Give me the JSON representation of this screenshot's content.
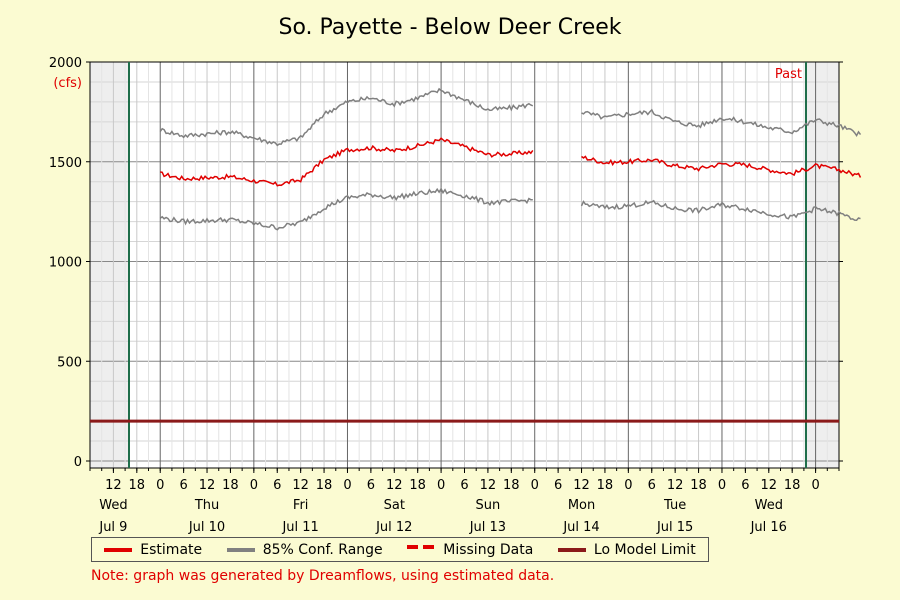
{
  "chart_data": {
    "type": "line",
    "title": "So. Payette - Below Deer Creek",
    "ylabel_unit": "(cfs)",
    "ylim": [
      0,
      2000
    ],
    "y_ticks": [
      0,
      500,
      1000,
      1500,
      2000
    ],
    "x_range_hours": [
      "2025-07-09T06:00",
      "2025-07-17T06:00"
    ],
    "x_tick_labels": [
      "12",
      "18",
      "0",
      "6",
      "12",
      "18",
      "0",
      "6",
      "12",
      "18",
      "0",
      "6",
      "12",
      "18",
      "0",
      "6",
      "12",
      "18",
      "0",
      "6",
      "12",
      "18",
      "0",
      "6",
      "12",
      "18",
      "0",
      "6",
      "12",
      "18",
      "0"
    ],
    "day_labels": [
      {
        "day": "Wed",
        "date": "Jul 9"
      },
      {
        "day": "Thu",
        "date": "Jul 10"
      },
      {
        "day": "Fri",
        "date": "Jul 11"
      },
      {
        "day": "Sat",
        "date": "Jul 12"
      },
      {
        "day": "Sun",
        "date": "Jul 13"
      },
      {
        "day": "Mon",
        "date": "Jul 14"
      },
      {
        "day": "Tue",
        "date": "Jul 15"
      },
      {
        "day": "Wed",
        "date": "Jul 16"
      }
    ],
    "past_label": "Past",
    "grid": true,
    "series": [
      {
        "name": "Estimate",
        "color": "#e00000",
        "time_hours": [
          0,
          6,
          12,
          18,
          24,
          30,
          36,
          42,
          48,
          54,
          60,
          66,
          72,
          78,
          84,
          90,
          96,
          102,
          108,
          114,
          120,
          126,
          132,
          138,
          144,
          150,
          156,
          162,
          168,
          174,
          180
        ],
        "values": [
          1440,
          1415,
          1420,
          1425,
          1405,
          1385,
          1410,
          1510,
          1560,
          1570,
          1555,
          1580,
          1610,
          1575,
          1535,
          1540,
          1550,
          null,
          1525,
          1495,
          1500,
          1510,
          1480,
          1465,
          1490,
          1485,
          1460,
          1440,
          1480,
          1460,
          1425
        ]
      },
      {
        "name": "85% Conf. Range (upper)",
        "color": "#808080",
        "time_hours": [
          0,
          6,
          12,
          18,
          24,
          30,
          36,
          42,
          48,
          54,
          60,
          66,
          72,
          78,
          84,
          90,
          96,
          102,
          108,
          114,
          120,
          126,
          132,
          138,
          144,
          150,
          156,
          162,
          168,
          174,
          180
        ],
        "values": [
          1660,
          1630,
          1640,
          1650,
          1620,
          1590,
          1620,
          1740,
          1800,
          1820,
          1790,
          1820,
          1860,
          1810,
          1760,
          1770,
          1790,
          null,
          1750,
          1720,
          1740,
          1750,
          1700,
          1680,
          1720,
          1700,
          1670,
          1650,
          1710,
          1680,
          1630
        ]
      },
      {
        "name": "85% Conf. Range (lower)",
        "color": "#808080",
        "time_hours": [
          0,
          6,
          12,
          18,
          24,
          30,
          36,
          42,
          48,
          54,
          60,
          66,
          72,
          78,
          84,
          90,
          96,
          102,
          108,
          114,
          120,
          126,
          132,
          138,
          144,
          150,
          156,
          162,
          168,
          174,
          180
        ],
        "values": [
          1220,
          1200,
          1205,
          1210,
          1190,
          1170,
          1195,
          1270,
          1320,
          1335,
          1320,
          1340,
          1355,
          1330,
          1295,
          1300,
          1310,
          null,
          1290,
          1270,
          1280,
          1295,
          1265,
          1255,
          1285,
          1265,
          1240,
          1220,
          1265,
          1240,
          1200
        ]
      }
    ],
    "lo_model_limit": {
      "name": "Lo Model Limit",
      "value": 200,
      "color": "#8b1a1a"
    }
  },
  "legend": {
    "estimate": "Estimate",
    "conf_range": "85% Conf. Range",
    "missing": "Missing Data",
    "lo_limit": "Lo Model Limit"
  },
  "note": "Note: graph was generated by Dreamflows, using estimated data."
}
